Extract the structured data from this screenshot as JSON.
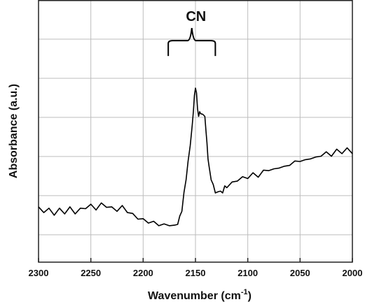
{
  "chart_data": {
    "type": "line",
    "title": "",
    "xlabel": "Wavenumber (cm",
    "xlabel_superscript": "-1",
    "xlabel_suffix": ")",
    "ylabel": "Absorbance (a.u.)",
    "xlim": [
      2300,
      2000
    ],
    "x_reversed": true,
    "ylim": [
      0,
      1
    ],
    "y_ticks_labeled": false,
    "x_ticks": [
      "2300",
      "2250",
      "2200",
      "2150",
      "2100",
      "2050",
      "2000"
    ],
    "grid": true,
    "annotation": {
      "text": "CN",
      "bracket_from": 2176,
      "bracket_to": 2131,
      "bracket_y": 0.845
    },
    "series": [
      {
        "color": "#000000",
        "x": [
          2300,
          2295,
          2290,
          2285,
          2280,
          2275,
          2270,
          2265,
          2260,
          2255,
          2250,
          2245,
          2240,
          2235,
          2230,
          2225,
          2220,
          2215,
          2210,
          2205,
          2200,
          2195,
          2190,
          2185,
          2180,
          2175,
          2170,
          2167,
          2165,
          2163,
          2161,
          2159,
          2157,
          2155,
          2153,
          2152,
          2151,
          2150,
          2149,
          2148,
          2147,
          2146,
          2145,
          2143,
          2141,
          2140,
          2139,
          2138,
          2137,
          2135,
          2133,
          2131,
          2130,
          2128,
          2126,
          2124,
          2122,
          2120,
          2115,
          2110,
          2105,
          2100,
          2095,
          2090,
          2085,
          2080,
          2075,
          2070,
          2065,
          2060,
          2055,
          2050,
          2045,
          2040,
          2035,
          2030,
          2025,
          2020,
          2015,
          2010,
          2005,
          2000
        ],
        "y": [
          0.205,
          0.195,
          0.2,
          0.185,
          0.2,
          0.19,
          0.205,
          0.19,
          0.2,
          0.21,
          0.215,
          0.205,
          0.22,
          0.215,
          0.205,
          0.2,
          0.21,
          0.195,
          0.18,
          0.17,
          0.16,
          0.155,
          0.15,
          0.145,
          0.14,
          0.145,
          0.135,
          0.15,
          0.17,
          0.2,
          0.26,
          0.32,
          0.38,
          0.45,
          0.52,
          0.58,
          0.63,
          0.67,
          0.64,
          0.59,
          0.55,
          0.58,
          0.56,
          0.57,
          0.55,
          0.51,
          0.45,
          0.4,
          0.36,
          0.32,
          0.29,
          0.27,
          0.26,
          0.275,
          0.265,
          0.27,
          0.285,
          0.29,
          0.3,
          0.315,
          0.32,
          0.325,
          0.335,
          0.33,
          0.345,
          0.355,
          0.35,
          0.365,
          0.36,
          0.375,
          0.38,
          0.39,
          0.385,
          0.4,
          0.395,
          0.41,
          0.415,
          0.41,
          0.425,
          0.42,
          0.43,
          0.42
        ]
      }
    ]
  }
}
